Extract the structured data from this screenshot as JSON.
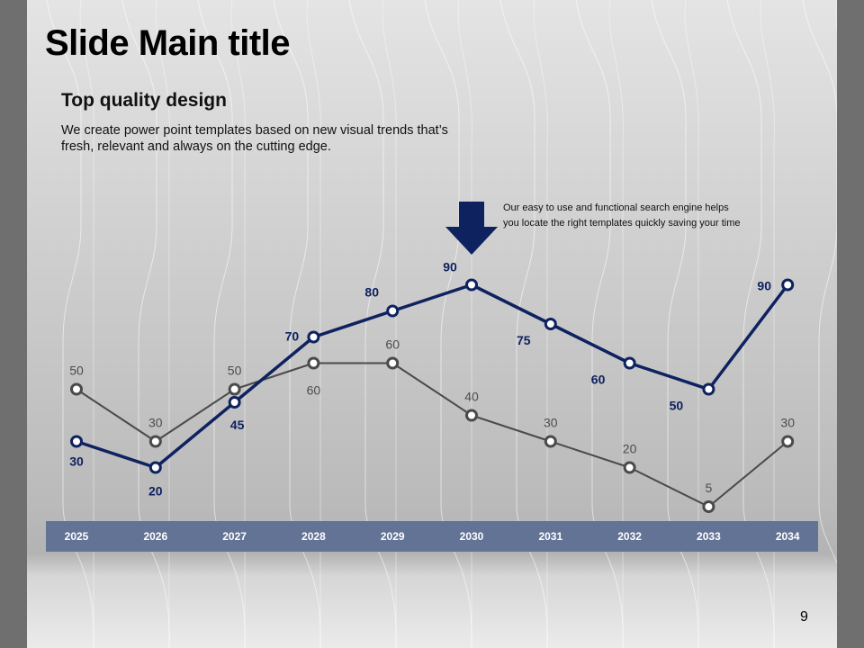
{
  "slide": {
    "title": "Slide Main title",
    "subtitle": "Top quality design",
    "body": "We create power point templates based on new visual trends that’s fresh, relevant and always on the cutting edge.",
    "callout": "Our easy to use and functional search engine helps you locate the right templates quickly saving your time",
    "page_number": "9"
  },
  "colors": {
    "primary_series": "#0e2260",
    "secondary_series": "#4a4a4a",
    "axis_band": "#637396",
    "arrow": "#0e2260"
  },
  "chart_data": {
    "type": "line",
    "title": "",
    "xlabel": "",
    "ylabel": "",
    "categories": [
      "2025",
      "2026",
      "2027",
      "2028",
      "2029",
      "2030",
      "2031",
      "2032",
      "2033",
      "2034"
    ],
    "series": [
      {
        "values": [
          30,
          20,
          45,
          70,
          80,
          90,
          75,
          60,
          50,
          90
        ]
      },
      {
        "values": [
          50,
          30,
          50,
          60,
          60,
          40,
          30,
          20,
          5,
          30
        ]
      }
    ],
    "annotation_arrow_category": "2030",
    "grid": false,
    "legend": "none"
  }
}
